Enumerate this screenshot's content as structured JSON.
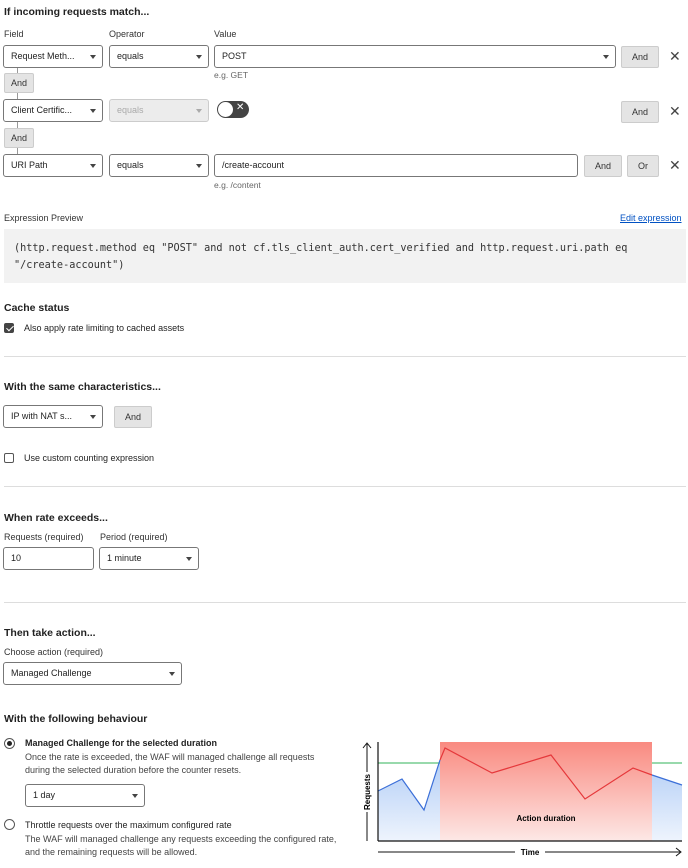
{
  "match": {
    "title": "If incoming requests match...",
    "col_field": "Field",
    "col_operator": "Operator",
    "col_value": "Value",
    "rows": [
      {
        "field": "Request Meth...",
        "operator": "equals",
        "value": "POST",
        "hint": "e.g. GET"
      },
      {
        "field": "Client Certific...",
        "operator": "equals",
        "toggle": false
      },
      {
        "field": "URI Path",
        "operator": "equals",
        "value": "/create-account",
        "hint": "e.g. /content"
      }
    ],
    "and": "And",
    "or": "Or",
    "close": "✕"
  },
  "expression": {
    "label": "Expression Preview",
    "edit": "Edit expression",
    "text": "(http.request.method eq \"POST\" and not cf.tls_client_auth.cert_verified and http.request.uri.path eq \"/create-account\")",
    "link_color": "#0051c3"
  },
  "cache": {
    "title": "Cache status",
    "checkbox": "Also apply rate limiting to cached assets",
    "checked": true
  },
  "characteristics": {
    "title": "With the same characteristics...",
    "select": "IP with NAT s...",
    "and": "And",
    "custom": "Use custom counting expression",
    "custom_checked": false
  },
  "rate": {
    "title": "When rate exceeds...",
    "requests_label": "Requests (required)",
    "requests": "10",
    "period_label": "Period (required)",
    "period": "1 minute"
  },
  "action": {
    "title": "Then take action...",
    "label": "Choose action (required)",
    "value": "Managed Challenge"
  },
  "behaviour": {
    "title": "With the following behaviour",
    "opt1_title": "Managed Challenge for the selected duration",
    "opt1_desc": "Once the rate is exceeded, the WAF will managed challenge all requests during the selected duration before the counter resets.",
    "duration": "1 day",
    "opt2_title": "Throttle requests over the maximum configured rate",
    "opt2_desc": "The WAF will managed challenge any requests exceeding the configured rate, and the remaining requests will be allowed.",
    "selected": 1
  },
  "illustration": {
    "y_label": "Requests",
    "x_label": "Time",
    "band_label": "Action duration"
  }
}
